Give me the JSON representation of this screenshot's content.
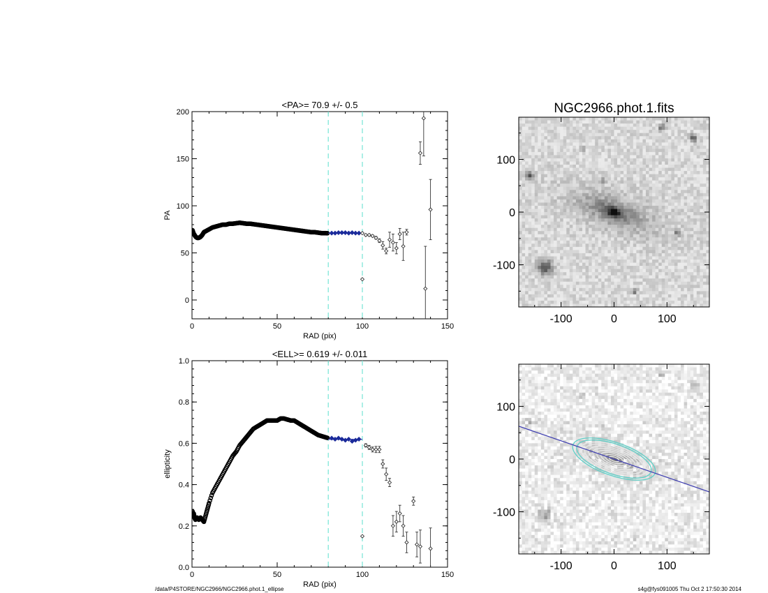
{
  "footer": {
    "path": "/data/P4STORE/NGC2966/NGC2966.phot.1_ellipse",
    "user_stamp": "s4g@fys091005  Thu Oct  2 17:50:30 2014"
  },
  "colors": {
    "fit_points": "#1a2a9a",
    "fit_line": "#3a3ab0",
    "range_lines": "#7fe6d8",
    "data_points": "#333333",
    "ellipse_contours": "#e8e8e8",
    "ellipse_outer": "#5fd0c8"
  },
  "chart_data": [
    {
      "id": "pa",
      "type": "scatter",
      "title": "<PA>=  70.9 +/-   0.5",
      "xlabel": "RAD (pix)",
      "ylabel": "PA",
      "xlim": [
        0,
        150
      ],
      "ylim": [
        -20,
        200
      ],
      "xticks": [
        0,
        50,
        100,
        150
      ],
      "yticks": [
        0,
        50,
        100,
        150,
        200
      ],
      "fit_range": [
        80,
        100
      ],
      "fit_value": 70.9,
      "dense_curve": {
        "x": [
          0.3,
          0.8,
          1.5,
          2.2,
          3,
          4,
          5,
          6,
          7,
          8,
          10,
          12,
          14,
          16,
          18,
          20,
          22,
          24,
          26,
          28,
          30,
          32,
          34,
          36,
          38,
          40,
          42,
          44,
          46,
          48,
          50,
          52,
          54,
          56,
          58,
          60,
          62,
          64,
          66,
          68,
          70,
          72,
          74,
          76,
          78,
          80
        ],
        "y": [
          74,
          71,
          69,
          67,
          66,
          66,
          67,
          69,
          72,
          73,
          75,
          77,
          78,
          79,
          80,
          80,
          81,
          81,
          81.5,
          82,
          81.5,
          81,
          81,
          80.5,
          80,
          79.5,
          79,
          78.5,
          78,
          77.5,
          77,
          76.5,
          76,
          75.5,
          75,
          74.5,
          74,
          73.5,
          73,
          72.5,
          72,
          72,
          71.5,
          71,
          71,
          70.8
        ]
      },
      "fit_points": {
        "x": [
          82,
          84,
          86,
          88,
          90,
          92,
          94,
          96,
          98
        ],
        "y": [
          71,
          71,
          71.5,
          71.5,
          71.5,
          71,
          71.5,
          71,
          71
        ]
      },
      "points": [
        {
          "x": 100,
          "y": 71,
          "err": 0.5
        },
        {
          "x": 100,
          "y": 22,
          "err": 0
        },
        {
          "x": 102,
          "y": 69,
          "err": 0.8
        },
        {
          "x": 104,
          "y": 69,
          "err": 1
        },
        {
          "x": 106,
          "y": 68,
          "err": 1
        },
        {
          "x": 108,
          "y": 66,
          "err": 1.5
        },
        {
          "x": 110,
          "y": 63,
          "err": 2
        },
        {
          "x": 112,
          "y": 58,
          "err": 4
        },
        {
          "x": 114,
          "y": 52,
          "err": 3
        },
        {
          "x": 116,
          "y": 64,
          "err": 8
        },
        {
          "x": 118,
          "y": 61,
          "err": 9
        },
        {
          "x": 120,
          "y": 55,
          "err": 6
        },
        {
          "x": 122,
          "y": 70,
          "err": 6
        },
        {
          "x": 124,
          "y": 57,
          "err": 15
        },
        {
          "x": 126,
          "y": 72,
          "err": 3
        },
        {
          "x": 134,
          "y": 156,
          "err": 12
        },
        {
          "x": 136,
          "y": 193,
          "err": 40
        },
        {
          "x": 137,
          "y": 12,
          "err": 45
        },
        {
          "x": 140,
          "y": 96,
          "err": 32
        }
      ]
    },
    {
      "id": "ell",
      "type": "scatter",
      "title": "<ELL>= 0.619 +/-  0.011",
      "xlabel": "RAD (pix)",
      "ylabel": "ellipticity",
      "xlim": [
        0,
        150
      ],
      "ylim": [
        0,
        1
      ],
      "xticks": [
        0,
        50,
        100,
        150
      ],
      "yticks": [
        0,
        0.2,
        0.4,
        0.6,
        0.8,
        1.0
      ],
      "ytick_labels": [
        "0.0",
        "0.2",
        "0.4",
        "0.6",
        "0.8",
        "1.0"
      ],
      "fit_range": [
        80,
        100
      ],
      "fit_value": 0.619,
      "dense_curve": {
        "x": [
          0.3,
          0.6,
          1,
          1.5,
          2,
          3,
          4,
          5,
          6,
          7,
          8,
          9,
          10,
          12,
          14,
          16,
          18,
          20,
          22,
          24,
          26,
          28,
          30,
          32,
          34,
          36,
          38,
          40,
          42,
          44,
          46,
          48,
          50,
          52,
          54,
          56,
          58,
          60,
          62,
          64,
          66,
          68,
          70,
          72,
          74,
          76,
          78,
          80
        ],
        "y": [
          0.27,
          0.25,
          0.26,
          0.24,
          0.23,
          0.24,
          0.23,
          0.24,
          0.23,
          0.22,
          0.25,
          0.28,
          0.31,
          0.36,
          0.39,
          0.42,
          0.45,
          0.48,
          0.51,
          0.54,
          0.56,
          0.59,
          0.61,
          0.63,
          0.65,
          0.67,
          0.68,
          0.69,
          0.7,
          0.71,
          0.71,
          0.71,
          0.71,
          0.72,
          0.72,
          0.715,
          0.71,
          0.71,
          0.7,
          0.69,
          0.68,
          0.67,
          0.66,
          0.65,
          0.64,
          0.635,
          0.63,
          0.625
        ]
      },
      "fit_points": {
        "x": [
          82,
          84,
          86,
          88,
          90,
          92,
          94,
          96,
          98
        ],
        "y": [
          0.625,
          0.62,
          0.625,
          0.62,
          0.615,
          0.62,
          0.61,
          0.615,
          0.62
        ]
      },
      "points": [
        {
          "x": 100,
          "y": 0.15,
          "err": 0
        },
        {
          "x": 102,
          "y": 0.59,
          "err": 0.008
        },
        {
          "x": 104,
          "y": 0.58,
          "err": 0.01
        },
        {
          "x": 106,
          "y": 0.57,
          "err": 0.012
        },
        {
          "x": 108,
          "y": 0.57,
          "err": 0.015
        },
        {
          "x": 110,
          "y": 0.57,
          "err": 0.015
        },
        {
          "x": 112,
          "y": 0.5,
          "err": 0.02
        },
        {
          "x": 114,
          "y": 0.45,
          "err": 0.03
        },
        {
          "x": 116,
          "y": 0.41,
          "err": 0.02
        },
        {
          "x": 118,
          "y": 0.2,
          "err": 0.05
        },
        {
          "x": 120,
          "y": 0.22,
          "err": 0.05
        },
        {
          "x": 122,
          "y": 0.26,
          "err": 0.04
        },
        {
          "x": 124,
          "y": 0.2,
          "err": 0.05
        },
        {
          "x": 126,
          "y": 0.12,
          "err": 0.05
        },
        {
          "x": 130,
          "y": 0.32,
          "err": 0.02
        },
        {
          "x": 132,
          "y": 0.11,
          "err": 0.06
        },
        {
          "x": 134,
          "y": 0.1,
          "err": 0.08
        },
        {
          "x": 140,
          "y": 0.09,
          "err": 0.1
        }
      ]
    },
    {
      "id": "img1",
      "type": "heatmap",
      "title": "NGC2966.phot.1.fits",
      "xlim": [
        -180,
        180
      ],
      "ylim": [
        -180,
        180
      ],
      "xticks": [
        -100,
        0,
        100
      ],
      "yticks": [
        -100,
        0,
        100
      ],
      "galaxy_pa_deg": 70.9,
      "galaxy_ellipticity": 0.619
    },
    {
      "id": "img2",
      "type": "heatmap",
      "title": "",
      "xlim": [
        -180,
        180
      ],
      "ylim": [
        -180,
        180
      ],
      "xticks": [
        -100,
        0,
        100
      ],
      "yticks": [
        -100,
        0,
        100
      ],
      "pa_line_deg": 70.9,
      "ellipse_ellipticity": 0.619,
      "ellipse_semi_major": [
        10,
        18,
        26,
        34,
        42,
        50,
        58,
        66,
        74,
        82
      ]
    }
  ]
}
